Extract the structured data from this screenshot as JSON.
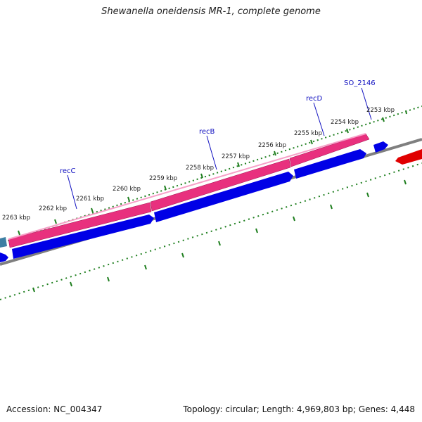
{
  "title": "Shewanella oneidensis MR-1, complete genome",
  "footer": {
    "accession": "Accession: NC_004347",
    "summary": "Topology: circular; Length: 4,969,803 bp; Genes: 4,448"
  },
  "colors": {
    "forward_cds": "#e8307e",
    "reverse_cds": "#0000e6",
    "other_feature": "#3d7fa3",
    "red_feature": "#e00000",
    "backbone": "#7f7f7f",
    "ticks": "#1f7f1f",
    "gene_label": "#1010c0",
    "tick_label": "#222222"
  },
  "tick_labels": [
    "2253 kbp",
    "2254 kbp",
    "2255 kbp",
    "2256 kbp",
    "2257 kbp",
    "2258 kbp",
    "2259 kbp",
    "2260 kbp",
    "2261 kbp",
    "2262 kbp",
    "2263 kbp"
  ],
  "gene_labels": [
    "SO_2146",
    "recD",
    "recB",
    "recC"
  ]
}
